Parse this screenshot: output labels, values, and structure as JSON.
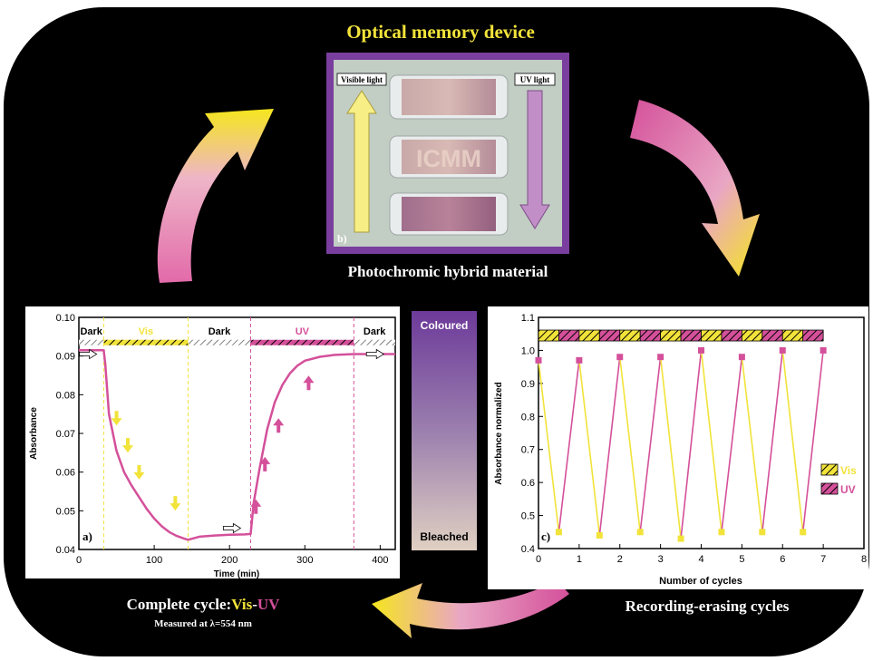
{
  "colors": {
    "background": "#000000",
    "yellow": "#f2e33a",
    "magenta": "#d4509a",
    "purple": "#7a3e9e",
    "white": "#ffffff"
  },
  "title": "Optical memory device",
  "photo": {
    "visible_light_label": "Visible light",
    "uv_light_label": "UV light",
    "panel_label": "b)",
    "slide_text": "ICMM",
    "caption": "Photochromic hybrid material"
  },
  "scale_bar": {
    "top_label": "Coloured",
    "bottom_label": "Bleached"
  },
  "bottom_left": {
    "line1_prefix": "Complete cycle:",
    "line1_vis": "Vis",
    "line1_dash": "-",
    "line1_uv": "UV",
    "line2": "Measured at λ=554 nm"
  },
  "bottom_right_caption": "Recording-erasing cycles",
  "chart_data": [
    {
      "type": "line",
      "panel_label": "a)",
      "xlabel": "Time (min)",
      "ylabel": "Absorbance",
      "xlim": [
        0,
        420
      ],
      "ylim": [
        0.04,
        0.1
      ],
      "xticks": [
        "0",
        "100",
        "200",
        "300",
        "400"
      ],
      "yticks": [
        "0.04",
        "0.05",
        "0.06",
        "0.07",
        "0.08",
        "0.09",
        "0.10"
      ],
      "segments": [
        {
          "label": "Dark",
          "start": 0,
          "end": 33
        },
        {
          "label": "Vis",
          "start": 33,
          "end": 145
        },
        {
          "label": "Dark",
          "start": 145,
          "end": 228
        },
        {
          "label": "UV",
          "start": 228,
          "end": 365
        },
        {
          "label": "Dark",
          "start": 365,
          "end": 420
        }
      ],
      "series": [
        {
          "x": [
            0,
            33,
            35,
            40,
            50,
            60,
            70,
            80,
            90,
            100,
            110,
            120,
            130,
            140,
            145,
            160,
            180,
            200,
            220,
            228,
            232,
            240,
            250,
            260,
            270,
            280,
            290,
            300,
            320,
            340,
            365,
            400,
            420
          ],
          "y": [
            0.0915,
            0.0915,
            0.088,
            0.075,
            0.0655,
            0.06,
            0.0565,
            0.0535,
            0.0505,
            0.048,
            0.046,
            0.0445,
            0.0435,
            0.0428,
            0.0425,
            0.0433,
            0.0436,
            0.0438,
            0.0439,
            0.044,
            0.052,
            0.061,
            0.071,
            0.078,
            0.0825,
            0.0855,
            0.0875,
            0.0888,
            0.0898,
            0.0903,
            0.0905,
            0.0905,
            0.0905
          ]
        }
      ]
    },
    {
      "type": "line",
      "panel_label": "c)",
      "xlabel": "Number of cycles",
      "ylabel": "Absorbance normalized",
      "xlim": [
        0,
        8
      ],
      "ylim": [
        0.4,
        1.1
      ],
      "xticks": [
        "0",
        "1",
        "2",
        "3",
        "4",
        "5",
        "6",
        "7",
        "8"
      ],
      "yticks": [
        "0.4",
        "0.5",
        "0.6",
        "0.7",
        "0.8",
        "0.9",
        "1.0",
        "1.1"
      ],
      "legend": [
        "Vis",
        "UV"
      ],
      "x": [
        0,
        0.5,
        1,
        1.5,
        2,
        2.5,
        3,
        3.5,
        4,
        4.5,
        5,
        5.5,
        6,
        6.5,
        7
      ],
      "y": [
        0.97,
        0.45,
        0.97,
        0.44,
        0.98,
        0.45,
        0.98,
        0.43,
        1.0,
        0.45,
        0.98,
        0.45,
        1.0,
        0.45,
        1.0
      ]
    }
  ]
}
